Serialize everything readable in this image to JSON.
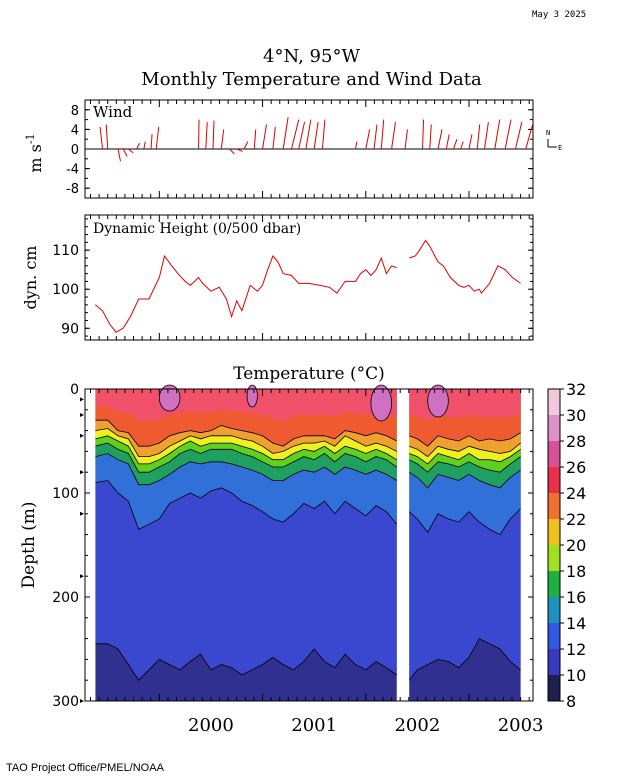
{
  "date_stamp": "May  3 2025",
  "title_line1": "4°N, 95°W",
  "title_line2": "Monthly Temperature and Wind Data",
  "footer": "TAO Project Office/PMEL/NOAA",
  "chart_data": [
    {
      "type": "line",
      "panel": "wind",
      "label": "Wind",
      "ylabel": "m s-1",
      "ylim": [
        -10,
        10
      ],
      "yticks": [
        8,
        4,
        0,
        -4,
        -8
      ],
      "compass": {
        "north": "N",
        "east": "E"
      },
      "line_color": "#e00000",
      "years": [
        "2000",
        "2001",
        "2002",
        "2003"
      ],
      "vectors": [
        {
          "t": 1999.45,
          "u": -0.5,
          "v": 4.5
        },
        {
          "t": 1999.5,
          "u": -0.3,
          "v": 5.0
        },
        {
          "t": 1999.6,
          "u": 0.5,
          "v": -2.5
        },
        {
          "t": 1999.65,
          "u": 0.8,
          "v": -1.5
        },
        {
          "t": 1999.7,
          "u": 1.0,
          "v": -0.8
        },
        {
          "t": 1999.78,
          "u": 0.6,
          "v": 1.2
        },
        {
          "t": 1999.85,
          "u": 0.3,
          "v": 1.5
        },
        {
          "t": 1999.92,
          "u": 0.2,
          "v": 3.0
        },
        {
          "t": 1999.97,
          "u": 0.5,
          "v": 4.5
        },
        {
          "t": 2000.38,
          "u": 0.1,
          "v": 6.0
        },
        {
          "t": 2000.45,
          "u": 0.3,
          "v": 5.5
        },
        {
          "t": 2000.52,
          "u": 0.2,
          "v": 5.8
        },
        {
          "t": 2000.6,
          "u": 0.5,
          "v": 4.0
        },
        {
          "t": 2000.68,
          "u": 1.0,
          "v": -1.0
        },
        {
          "t": 2000.75,
          "u": 1.2,
          "v": -0.5
        },
        {
          "t": 2000.82,
          "u": 0.8,
          "v": 1.5
        },
        {
          "t": 2000.92,
          "u": 0.3,
          "v": 4.0
        },
        {
          "t": 2001.0,
          "u": 0.8,
          "v": 5.0
        },
        {
          "t": 2001.1,
          "u": 0.5,
          "v": 4.5
        },
        {
          "t": 2001.2,
          "u": 1.0,
          "v": 6.5
        },
        {
          "t": 2001.28,
          "u": 1.5,
          "v": 6.0
        },
        {
          "t": 2001.35,
          "u": 1.2,
          "v": 5.5
        },
        {
          "t": 2001.42,
          "u": 1.0,
          "v": 6.0
        },
        {
          "t": 2001.5,
          "u": 0.8,
          "v": 5.5
        },
        {
          "t": 2001.58,
          "u": 0.5,
          "v": 6.0
        },
        {
          "t": 2001.9,
          "u": 0.3,
          "v": 1.5
        },
        {
          "t": 2002.0,
          "u": 0.8,
          "v": 4.0
        },
        {
          "t": 2002.08,
          "u": 0.6,
          "v": 5.0
        },
        {
          "t": 2002.15,
          "u": 0.5,
          "v": 6.0
        },
        {
          "t": 2002.25,
          "u": 0.8,
          "v": 5.5
        },
        {
          "t": 2002.38,
          "u": 0.5,
          "v": 4.0
        },
        {
          "t": 2002.55,
          "u": 0.2,
          "v": 6.0
        },
        {
          "t": 2002.62,
          "u": 0.3,
          "v": 5.0
        },
        {
          "t": 2002.7,
          "u": 0.8,
          "v": 4.0
        },
        {
          "t": 2002.78,
          "u": 0.6,
          "v": 3.0
        },
        {
          "t": 2002.85,
          "u": 0.7,
          "v": 2.0
        },
        {
          "t": 2002.92,
          "u": 0.5,
          "v": 1.5
        },
        {
          "t": 2003.0,
          "u": 0.6,
          "v": 3.0
        },
        {
          "t": 2003.08,
          "u": 0.5,
          "v": 5.0
        },
        {
          "t": 2003.15,
          "u": 0.8,
          "v": 5.5
        },
        {
          "t": 2003.25,
          "u": 1.0,
          "v": 6.0
        },
        {
          "t": 2003.35,
          "u": 1.2,
          "v": 6.0
        },
        {
          "t": 2003.45,
          "u": 1.3,
          "v": 5.5
        },
        {
          "t": 2003.55,
          "u": 1.4,
          "v": 5.0
        }
      ]
    },
    {
      "type": "line",
      "panel": "dynamic_height",
      "label": "Dynamic Height (0/500 dbar)",
      "ylabel": "dyn. cm",
      "ylim": [
        87,
        119
      ],
      "yticks": [
        90,
        100,
        110
      ],
      "line_color": "#e00000",
      "series": [
        {
          "values": [
            [
              1999.38,
              96
            ],
            [
              1999.45,
              94.5
            ],
            [
              1999.52,
              91
            ],
            [
              1999.58,
              89
            ],
            [
              1999.65,
              90
            ],
            [
              1999.72,
              93
            ],
            [
              1999.8,
              97.5
            ],
            [
              1999.9,
              97.5
            ],
            [
              2000.0,
              103
            ],
            [
              2000.05,
              108.5
            ],
            [
              2000.12,
              106
            ],
            [
              2000.18,
              104
            ],
            [
              2000.25,
              102
            ],
            [
              2000.3,
              101
            ],
            [
              2000.38,
              103
            ],
            [
              2000.42,
              101.5
            ],
            [
              2000.5,
              99.5
            ],
            [
              2000.58,
              100.5
            ],
            [
              2000.65,
              97.5
            ],
            [
              2000.7,
              93
            ],
            [
              2000.75,
              97
            ],
            [
              2000.8,
              94.5
            ],
            [
              2000.88,
              101
            ],
            [
              2000.95,
              99.5
            ],
            [
              2001.0,
              101
            ],
            [
              2001.05,
              105
            ],
            [
              2001.1,
              108.5
            ],
            [
              2001.15,
              107
            ],
            [
              2001.2,
              104
            ],
            [
              2001.28,
              103.5
            ],
            [
              2001.35,
              101.5
            ],
            [
              2001.45,
              101.5
            ],
            [
              2001.55,
              101
            ],
            [
              2001.65,
              100.5
            ],
            [
              2001.72,
              99
            ],
            [
              2001.8,
              102
            ],
            [
              2001.9,
              102
            ],
            [
              2001.95,
              104
            ],
            [
              2002.0,
              105
            ],
            [
              2002.05,
              103.5
            ],
            [
              2002.1,
              105
            ],
            [
              2002.15,
              108
            ],
            [
              2002.2,
              104
            ],
            [
              2002.25,
              106
            ],
            [
              2002.3,
              105.5
            ]
          ]
        },
        {
          "values": [
            [
              2002.42,
              108
            ],
            [
              2002.48,
              108.5
            ],
            [
              2002.52,
              110
            ],
            [
              2002.58,
              112.5
            ],
            [
              2002.62,
              111
            ],
            [
              2002.7,
              107
            ],
            [
              2002.75,
              106
            ],
            [
              2002.82,
              103
            ],
            [
              2002.9,
              101
            ],
            [
              2002.95,
              100.5
            ],
            [
              2003.0,
              101
            ],
            [
              2003.05,
              99.5
            ],
            [
              2003.1,
              100
            ],
            [
              2003.12,
              99
            ],
            [
              2003.2,
              101.5
            ],
            [
              2003.28,
              106
            ],
            [
              2003.35,
              105
            ],
            [
              2003.42,
              103
            ],
            [
              2003.5,
              101.5
            ]
          ]
        }
      ]
    },
    {
      "type": "heatmap",
      "panel": "temperature",
      "title": "Temperature (°C)",
      "ylabel": "Depth (m)",
      "ylim": [
        300,
        0
      ],
      "yticks": [
        0,
        100,
        200,
        300
      ],
      "xticks": [
        "2000",
        "2001",
        "2002",
        "2003"
      ],
      "colorbar": {
        "ticks": [
          32,
          30,
          28,
          26,
          24,
          22,
          20,
          18,
          16,
          14,
          12,
          10,
          8
        ]
      },
      "data_gap": [
        2002.32,
        2002.42
      ],
      "colors": {
        "27": "#f0506a",
        "26": "#e83450",
        "24": "#f05a30",
        "22": "#f0a030",
        "20": "#f0f020",
        "18": "#60d020",
        "16": "#20a060",
        "14": "#3070d8",
        "12": "#3a48d0",
        "10": "#303090",
        "28": "#d070c0"
      },
      "isotherms": {
        "t": [
          1999.38,
          1999.5,
          1999.6,
          1999.7,
          1999.8,
          1999.9,
          2000.0,
          2000.1,
          2000.2,
          2000.3,
          2000.4,
          2000.5,
          2000.6,
          2000.7,
          2000.8,
          2000.9,
          2001.0,
          2001.1,
          2001.2,
          2001.3,
          2001.4,
          2001.5,
          2001.6,
          2001.7,
          2001.8,
          2001.9,
          2002.0,
          2002.1,
          2002.2,
          2002.3,
          2002.42,
          2002.5,
          2002.6,
          2002.7,
          2002.8,
          2002.9,
          2003.0,
          2003.1,
          2003.2,
          2003.3,
          2003.4,
          2003.5
        ],
        "24": [
          30,
          30,
          40,
          42,
          55,
          55,
          52,
          45,
          42,
          40,
          42,
          40,
          35,
          38,
          40,
          42,
          45,
          52,
          55,
          48,
          45,
          45,
          45,
          48,
          40,
          42,
          45,
          42,
          45,
          50,
          45,
          48,
          55,
          45,
          48,
          50,
          45,
          50,
          48,
          50,
          48,
          42
        ],
        "22": [
          40,
          38,
          45,
          48,
          65,
          65,
          62,
          55,
          50,
          45,
          48,
          45,
          45,
          45,
          48,
          50,
          55,
          62,
          60,
          55,
          52,
          52,
          50,
          55,
          45,
          50,
          55,
          52,
          55,
          60,
          55,
          58,
          65,
          55,
          58,
          60,
          55,
          58,
          60,
          62,
          60,
          52
        ],
        "20": [
          48,
          45,
          50,
          55,
          72,
          72,
          68,
          62,
          55,
          50,
          55,
          52,
          52,
          52,
          55,
          58,
          62,
          68,
          68,
          62,
          58,
          60,
          55,
          62,
          55,
          58,
          62,
          58,
          62,
          68,
          62,
          65,
          72,
          62,
          65,
          68,
          62,
          68,
          68,
          70,
          65,
          58
        ],
        "18": [
          55,
          52,
          58,
          62,
          80,
          80,
          75,
          70,
          62,
          58,
          62,
          58,
          58,
          58,
          62,
          65,
          70,
          75,
          75,
          70,
          65,
          68,
          62,
          70,
          62,
          65,
          70,
          65,
          68,
          75,
          68,
          72,
          80,
          70,
          72,
          75,
          70,
          75,
          78,
          80,
          72,
          65
        ],
        "16": [
          65,
          62,
          68,
          72,
          92,
          92,
          88,
          82,
          75,
          70,
          72,
          70,
          70,
          72,
          75,
          78,
          82,
          88,
          88,
          82,
          78,
          80,
          75,
          82,
          75,
          78,
          82,
          78,
          82,
          88,
          80,
          85,
          95,
          82,
          85,
          88,
          82,
          88,
          92,
          95,
          85,
          78
        ],
        "14": [
          90,
          88,
          100,
          108,
          135,
          130,
          125,
          110,
          105,
          100,
          105,
          98,
          95,
          100,
          108,
          112,
          118,
          125,
          128,
          120,
          110,
          115,
          108,
          120,
          108,
          115,
          122,
          112,
          118,
          130,
          118,
          125,
          138,
          120,
          125,
          128,
          118,
          128,
          135,
          140,
          125,
          115
        ],
        "12": [
          245,
          245,
          250,
          265,
          280,
          270,
          260,
          265,
          270,
          262,
          255,
          270,
          265,
          268,
          275,
          270,
          265,
          258,
          265,
          270,
          262,
          250,
          262,
          268,
          255,
          265,
          270,
          262,
          268,
          275,
          280,
          270,
          265,
          260,
          262,
          268,
          258,
          240,
          245,
          250,
          262,
          270
        ]
      }
    }
  ]
}
